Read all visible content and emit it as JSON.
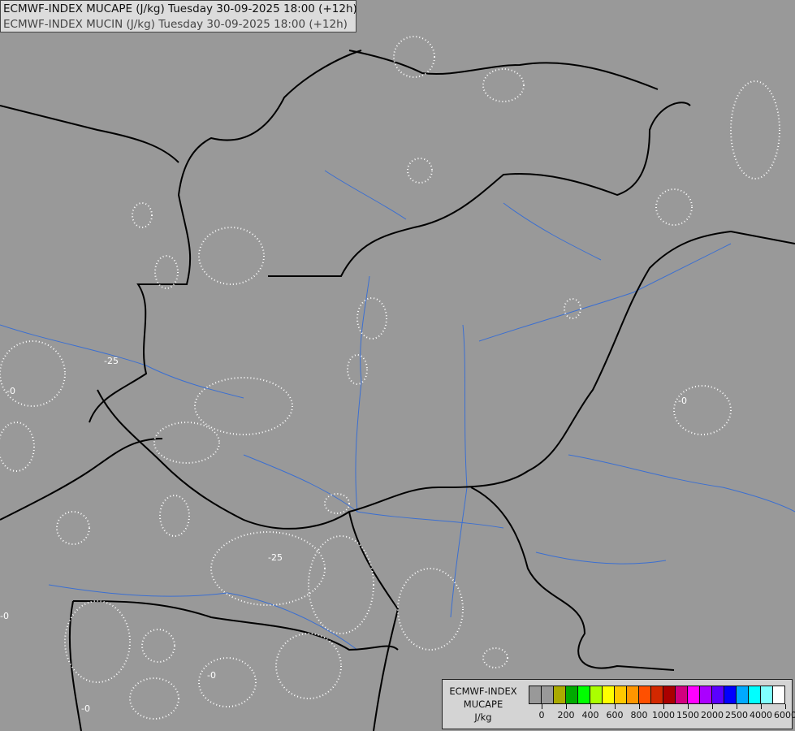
{
  "title": {
    "line1": "ECMWF-INDEX MUCAPE (J/kg) Tuesday 30-09-2025 18:00 (+12h)",
    "line2": "ECMWF-INDEX MUCIN (J/kg) Tuesday 30-09-2025 18:00 (+12h)"
  },
  "map": {
    "background_color": "#999999",
    "border_color": "#000000",
    "river_color": "#3b6fd1",
    "contour_color": "#ffffff",
    "contour_labels": [
      "-0",
      "-25",
      "-0",
      "-0",
      "-25",
      "-0",
      "-0"
    ]
  },
  "legend": {
    "line1": "ECMWF-INDEX",
    "line2": "MUCAPE",
    "line3": "J/kg",
    "colors": [
      "#999999",
      "#999999",
      "#aaaa00",
      "#00aa00",
      "#00ff00",
      "#aaff00",
      "#ffff00",
      "#ffc800",
      "#ff9600",
      "#ff5000",
      "#d22800",
      "#aa0000",
      "#d2007f",
      "#ff00ff",
      "#aa00ff",
      "#5a00ff",
      "#0000ff",
      "#00aaff",
      "#00ffff",
      "#80ffff",
      "#ffffff"
    ],
    "tick_labels": [
      "0",
      "200",
      "400",
      "600",
      "800",
      "1000",
      "1500",
      "2000",
      "2500",
      "4000",
      "6000"
    ]
  }
}
